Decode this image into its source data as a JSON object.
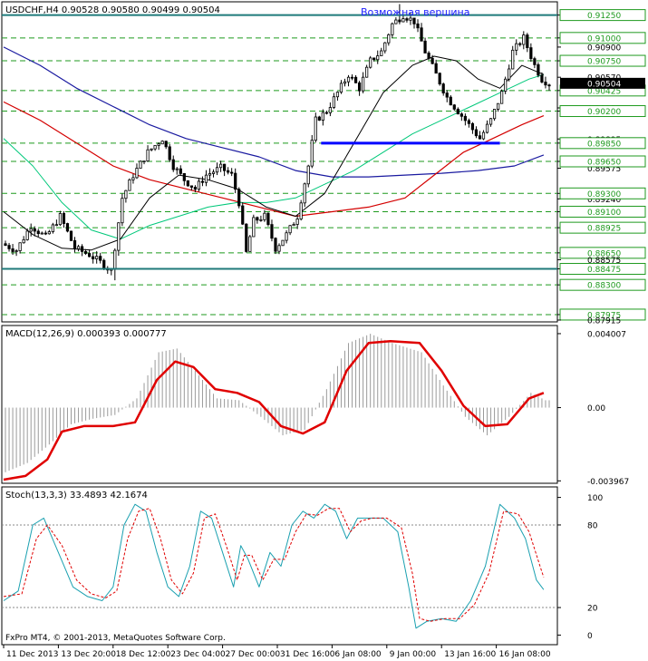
{
  "colors": {
    "background": "#ffffff",
    "grid": "#1f9a1f",
    "candle": "#000000",
    "support_line": "#1f7a7a",
    "pattern_line": "#0000ff",
    "ma_fast": "#000000",
    "ma_mid": "#00c87a",
    "ma_slow_red": "#d40000",
    "ma_slow_blue": "#1a1aa0",
    "macd_signal": "#e00000",
    "macd_hist": "#9a9a9a",
    "stoch_main": "#1aa0b0",
    "stoch_signal": "#e00000",
    "label_box": "#ffffff"
  },
  "chart_data": [
    {
      "type": "candlestick",
      "header": "USDCHF,H4  0.90528 0.90580 0.90499 0.90504",
      "annotation": "Возможная вершина",
      "current_price": "0.90504",
      "ylim": [
        0.87915,
        0.91375
      ],
      "x_count": 150,
      "price_ticks": [
        {
          "label": "0.91250",
          "value": 0.9125,
          "boxed": true
        },
        {
          "label": "0.91000",
          "value": 0.91,
          "boxed": true
        },
        {
          "label": "0.90900",
          "value": 0.909,
          "boxed": false
        },
        {
          "label": "0.90750",
          "value": 0.9075,
          "boxed": true
        },
        {
          "label": "0.90570",
          "value": 0.9057,
          "boxed": false
        },
        {
          "label": "0.90425",
          "value": 0.90425,
          "boxed": true
        },
        {
          "label": "0.90235",
          "value": 0.90235,
          "boxed": false
        },
        {
          "label": "0.90200",
          "value": 0.902,
          "boxed": true
        },
        {
          "label": "0.89895",
          "value": 0.89895,
          "boxed": false
        },
        {
          "label": "0.89850",
          "value": 0.8985,
          "boxed": true
        },
        {
          "label": "0.89575",
          "value": 0.89575,
          "boxed": false
        },
        {
          "label": "0.89650",
          "value": 0.8965,
          "boxed": true
        },
        {
          "label": "0.89240",
          "value": 0.8924,
          "boxed": false
        },
        {
          "label": "0.89300",
          "value": 0.893,
          "boxed": true
        },
        {
          "label": "0.89100",
          "value": 0.891,
          "boxed": true
        },
        {
          "label": "0.88925",
          "value": 0.88925,
          "boxed": true
        },
        {
          "label": "0.88650",
          "value": 0.8865,
          "boxed": true
        },
        {
          "label": "0.88575",
          "value": 0.88575,
          "boxed": false
        },
        {
          "label": "0.88475",
          "value": 0.88475,
          "boxed": true
        },
        {
          "label": "0.88300",
          "value": 0.883,
          "boxed": true
        },
        {
          "label": "0.87975",
          "value": 0.87975,
          "boxed": true
        },
        {
          "label": "0.87915",
          "value": 0.87915,
          "boxed": false
        }
      ],
      "support_level": 0.88475,
      "resistance_level": 0.9125,
      "pattern_segment": {
        "x0": 87,
        "x1": 136,
        "value": 0.8985
      },
      "price_path": [
        [
          0,
          0.8875
        ],
        [
          4,
          0.8868
        ],
        [
          8,
          0.8895
        ],
        [
          12,
          0.8882
        ],
        [
          16,
          0.8905
        ],
        [
          20,
          0.887
        ],
        [
          24,
          0.8863
        ],
        [
          28,
          0.8852
        ],
        [
          30,
          0.8845
        ],
        [
          33,
          0.8925
        ],
        [
          36,
          0.895
        ],
        [
          40,
          0.8975
        ],
        [
          44,
          0.899
        ],
        [
          47,
          0.896
        ],
        [
          50,
          0.8945
        ],
        [
          53,
          0.8935
        ],
        [
          56,
          0.895
        ],
        [
          60,
          0.8958
        ],
        [
          63,
          0.895
        ],
        [
          65,
          0.892
        ],
        [
          67,
          0.8865
        ],
        [
          69,
          0.89
        ],
        [
          72,
          0.8905
        ],
        [
          75,
          0.887
        ],
        [
          78,
          0.8885
        ],
        [
          81,
          0.8905
        ],
        [
          84,
          0.896
        ],
        [
          86,
          0.901
        ],
        [
          89,
          0.902
        ],
        [
          92,
          0.904
        ],
        [
          95,
          0.906
        ],
        [
          98,
          0.9045
        ],
        [
          101,
          0.9075
        ],
        [
          104,
          0.9085
        ],
        [
          107,
          0.9115
        ],
        [
          110,
          0.9125
        ],
        [
          113,
          0.9118
        ],
        [
          116,
          0.9085
        ],
        [
          119,
          0.906
        ],
        [
          122,
          0.9035
        ],
        [
          125,
          0.902
        ],
        [
          128,
          0.9005
        ],
        [
          131,
          0.899
        ],
        [
          134,
          0.901
        ],
        [
          137,
          0.904
        ],
        [
          140,
          0.9085
        ],
        [
          143,
          0.91
        ],
        [
          146,
          0.907
        ],
        [
          148,
          0.9055
        ],
        [
          150,
          0.905
        ]
      ],
      "spikes": [
        [
          67,
          0.8879
        ],
        [
          30,
          0.8835
        ],
        [
          108,
          0.9137
        ]
      ],
      "ma_fast_path": [
        [
          0,
          0.891
        ],
        [
          8,
          0.8885
        ],
        [
          16,
          0.887
        ],
        [
          24,
          0.8868
        ],
        [
          32,
          0.888
        ],
        [
          40,
          0.8925
        ],
        [
          48,
          0.895
        ],
        [
          56,
          0.8945
        ],
        [
          64,
          0.8935
        ],
        [
          72,
          0.8915
        ],
        [
          80,
          0.8905
        ],
        [
          88,
          0.893
        ],
        [
          96,
          0.8985
        ],
        [
          104,
          0.904
        ],
        [
          112,
          0.907
        ],
        [
          118,
          0.908
        ],
        [
          124,
          0.9075
        ],
        [
          130,
          0.9055
        ],
        [
          136,
          0.9045
        ],
        [
          142,
          0.907
        ],
        [
          148,
          0.906
        ]
      ],
      "ma_mid_path": [
        [
          0,
          0.899
        ],
        [
          8,
          0.896
        ],
        [
          16,
          0.892
        ],
        [
          24,
          0.889
        ],
        [
          32,
          0.888
        ],
        [
          40,
          0.8895
        ],
        [
          48,
          0.8905
        ],
        [
          56,
          0.8915
        ],
        [
          64,
          0.892
        ],
        [
          72,
          0.892
        ],
        [
          80,
          0.8925
        ],
        [
          88,
          0.894
        ],
        [
          96,
          0.8955
        ],
        [
          104,
          0.8975
        ],
        [
          112,
          0.8995
        ],
        [
          120,
          0.901
        ],
        [
          128,
          0.9025
        ],
        [
          136,
          0.904
        ],
        [
          144,
          0.9055
        ],
        [
          148,
          0.906
        ]
      ],
      "ma_red_path": [
        [
          0,
          0.903
        ],
        [
          10,
          0.901
        ],
        [
          20,
          0.8985
        ],
        [
          30,
          0.896
        ],
        [
          40,
          0.8945
        ],
        [
          50,
          0.8935
        ],
        [
          60,
          0.8925
        ],
        [
          70,
          0.8915
        ],
        [
          80,
          0.8905
        ],
        [
          90,
          0.891
        ],
        [
          100,
          0.8915
        ],
        [
          110,
          0.8925
        ],
        [
          118,
          0.895
        ],
        [
          126,
          0.8975
        ],
        [
          134,
          0.899
        ],
        [
          142,
          0.9005
        ],
        [
          148,
          0.9015
        ]
      ],
      "ma_blue_path": [
        [
          0,
          0.909
        ],
        [
          10,
          0.907
        ],
        [
          20,
          0.9045
        ],
        [
          30,
          0.9025
        ],
        [
          40,
          0.9005
        ],
        [
          50,
          0.899
        ],
        [
          60,
          0.898
        ],
        [
          70,
          0.897
        ],
        [
          80,
          0.8955
        ],
        [
          90,
          0.8948
        ],
        [
          100,
          0.8948
        ],
        [
          110,
          0.895
        ],
        [
          120,
          0.8952
        ],
        [
          130,
          0.8955
        ],
        [
          140,
          0.896
        ],
        [
          148,
          0.8972
        ]
      ]
    },
    {
      "type": "macd",
      "label": "MACD(12,26,9) 0.000393 0.000777",
      "ylim": [
        -0.004,
        0.0043
      ],
      "ticks": [
        {
          "label": "0.004007",
          "value": 0.004007
        },
        {
          "label": "0.00",
          "value": 0.0
        },
        {
          "label": "-0.003967",
          "value": -0.003967
        }
      ],
      "signal_path": [
        [
          0,
          -0.0039
        ],
        [
          6,
          -0.0037
        ],
        [
          12,
          -0.0028
        ],
        [
          16,
          -0.0013
        ],
        [
          22,
          -0.001
        ],
        [
          30,
          -0.001
        ],
        [
          36,
          -0.0008
        ],
        [
          42,
          0.0015
        ],
        [
          47,
          0.0025
        ],
        [
          52,
          0.0022
        ],
        [
          58,
          0.001
        ],
        [
          64,
          0.0008
        ],
        [
          70,
          0.0003
        ],
        [
          76,
          -0.001
        ],
        [
          82,
          -0.0014
        ],
        [
          88,
          -0.0008
        ],
        [
          94,
          0.002
        ],
        [
          100,
          0.0035
        ],
        [
          106,
          0.0036
        ],
        [
          114,
          0.0035
        ],
        [
          120,
          0.002
        ],
        [
          126,
          0.0001
        ],
        [
          132,
          -0.001
        ],
        [
          138,
          -0.0009
        ],
        [
          144,
          0.0005
        ],
        [
          148,
          0.0008
        ]
      ],
      "hist_path": [
        [
          0,
          -0.0035
        ],
        [
          6,
          -0.003
        ],
        [
          12,
          -0.002
        ],
        [
          18,
          -0.0009
        ],
        [
          24,
          -0.0006
        ],
        [
          30,
          -0.0004
        ],
        [
          36,
          0.0005
        ],
        [
          42,
          0.003
        ],
        [
          47,
          0.0032
        ],
        [
          52,
          0.002
        ],
        [
          58,
          0.0005
        ],
        [
          64,
          0.0004
        ],
        [
          70,
          -0.0005
        ],
        [
          76,
          -0.0015
        ],
        [
          82,
          -0.0012
        ],
        [
          88,
          0.001
        ],
        [
          94,
          0.0035
        ],
        [
          100,
          0.004
        ],
        [
          106,
          0.0035
        ],
        [
          114,
          0.003
        ],
        [
          120,
          0.0012
        ],
        [
          126,
          -0.0005
        ],
        [
          132,
          -0.0015
        ],
        [
          138,
          -0.0005
        ],
        [
          144,
          0.0008
        ],
        [
          148,
          0.0004
        ]
      ]
    },
    {
      "type": "stochastic",
      "label": "Stoch(13,3,3) 33.4893 42.1674",
      "ylim": [
        0,
        100
      ],
      "ticks": [
        {
          "label": "100",
          "value": 100
        },
        {
          "label": "80",
          "value": 80
        },
        {
          "label": "20",
          "value": 20
        },
        {
          "label": "0",
          "value": 0
        }
      ],
      "main_path": [
        [
          0,
          25
        ],
        [
          4,
          32
        ],
        [
          8,
          80
        ],
        [
          11,
          85
        ],
        [
          15,
          60
        ],
        [
          19,
          35
        ],
        [
          23,
          28
        ],
        [
          27,
          25
        ],
        [
          30,
          35
        ],
        [
          33,
          80
        ],
        [
          36,
          95
        ],
        [
          39,
          90
        ],
        [
          42,
          60
        ],
        [
          45,
          35
        ],
        [
          48,
          28
        ],
        [
          51,
          50
        ],
        [
          54,
          90
        ],
        [
          57,
          85
        ],
        [
          60,
          60
        ],
        [
          63,
          35
        ],
        [
          65,
          65
        ],
        [
          67,
          55
        ],
        [
          70,
          35
        ],
        [
          73,
          60
        ],
        [
          76,
          50
        ],
        [
          79,
          80
        ],
        [
          82,
          90
        ],
        [
          85,
          85
        ],
        [
          88,
          95
        ],
        [
          91,
          90
        ],
        [
          94,
          70
        ],
        [
          97,
          85
        ],
        [
          100,
          85
        ],
        [
          104,
          85
        ],
        [
          108,
          75
        ],
        [
          111,
          35
        ],
        [
          113,
          5
        ],
        [
          116,
          10
        ],
        [
          120,
          12
        ],
        [
          124,
          10
        ],
        [
          128,
          25
        ],
        [
          132,
          50
        ],
        [
          136,
          95
        ],
        [
          140,
          85
        ],
        [
          143,
          70
        ],
        [
          146,
          40
        ],
        [
          148,
          33
        ]
      ],
      "signal_path": [
        [
          0,
          28
        ],
        [
          5,
          30
        ],
        [
          9,
          70
        ],
        [
          12,
          80
        ],
        [
          16,
          65
        ],
        [
          20,
          40
        ],
        [
          24,
          30
        ],
        [
          28,
          27
        ],
        [
          31,
          32
        ],
        [
          34,
          70
        ],
        [
          37,
          90
        ],
        [
          40,
          92
        ],
        [
          43,
          70
        ],
        [
          46,
          40
        ],
        [
          49,
          30
        ],
        [
          52,
          45
        ],
        [
          55,
          85
        ],
        [
          58,
          88
        ],
        [
          61,
          65
        ],
        [
          64,
          40
        ],
        [
          66,
          58
        ],
        [
          68,
          58
        ],
        [
          71,
          40
        ],
        [
          74,
          55
        ],
        [
          77,
          55
        ],
        [
          80,
          75
        ],
        [
          83,
          88
        ],
        [
          86,
          87
        ],
        [
          89,
          92
        ],
        [
          92,
          92
        ],
        [
          95,
          75
        ],
        [
          98,
          83
        ],
        [
          101,
          85
        ],
        [
          105,
          85
        ],
        [
          109,
          78
        ],
        [
          112,
          45
        ],
        [
          114,
          12
        ],
        [
          117,
          10
        ],
        [
          121,
          12
        ],
        [
          125,
          12
        ],
        [
          129,
          22
        ],
        [
          133,
          45
        ],
        [
          137,
          90
        ],
        [
          141,
          88
        ],
        [
          144,
          75
        ],
        [
          147,
          50
        ],
        [
          148,
          42
        ]
      ],
      "copyright": "FxPro MT4, © 2001-2013, MetaQuotes Software Corp."
    }
  ],
  "x_axis": {
    "ticks": [
      {
        "label": "11 Dec 2013",
        "x": 0
      },
      {
        "label": "13 Dec 20:00",
        "x": 15
      },
      {
        "label": "18 Dec 12:00",
        "x": 30
      },
      {
        "label": "23 Dec 04:00",
        "x": 45
      },
      {
        "label": "27 Dec 00:00",
        "x": 60
      },
      {
        "label": "31 Dec 16:00",
        "x": 75
      },
      {
        "label": "6 Jan 08:00",
        "x": 90
      },
      {
        "label": "9 Jan 00:00",
        "x": 105
      },
      {
        "label": "13 Jan 16:00",
        "x": 120
      },
      {
        "label": "16 Jan 08:00",
        "x": 135
      }
    ]
  }
}
